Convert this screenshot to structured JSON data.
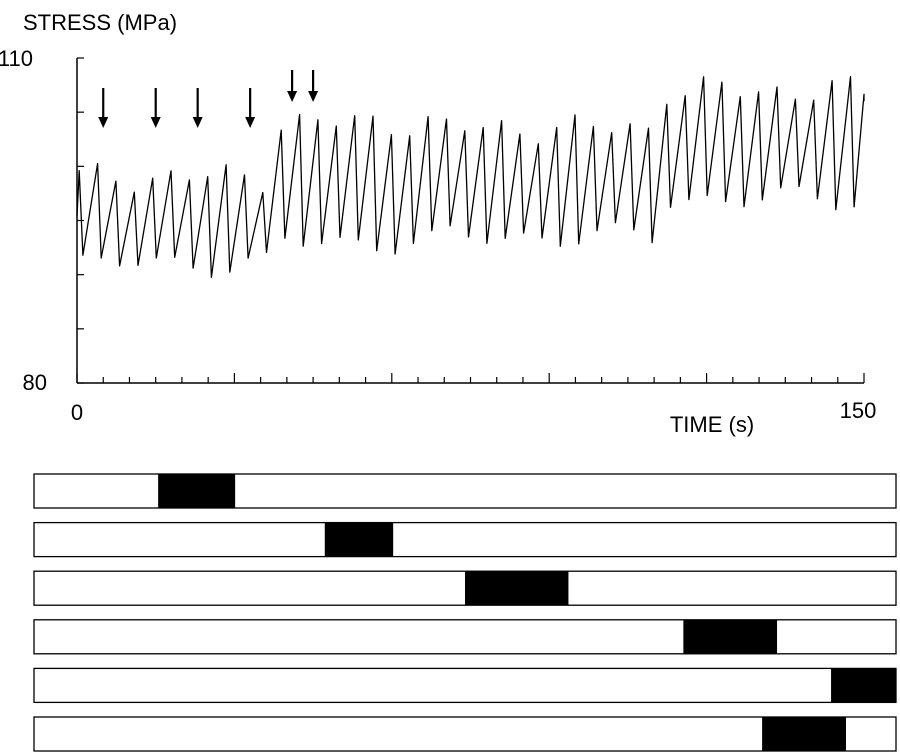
{
  "chart_data": [
    {
      "type": "line",
      "title": "",
      "ylabel": "STRESS (MPa)",
      "xlabel": "TIME (s)",
      "xlim": [
        0,
        150
      ],
      "ylim": [
        80,
        110
      ],
      "x_tick_labels": [
        "0",
        "150"
      ],
      "y_tick_labels": [
        "80",
        "110"
      ],
      "grid": false,
      "series": [
        {
          "style": "sawtooth",
          "period_s": 3.5,
          "segments": [
            {
              "x_start": 0,
              "x_end": 37,
              "peak": 99,
              "trough": 91
            },
            {
              "x_start": 37,
              "x_end": 70,
              "peak": 104,
              "trough": 93
            },
            {
              "x_start": 70,
              "x_end": 112,
              "peak": 103.5,
              "trough": 93.5
            },
            {
              "x_start": 112,
              "x_end": 150,
              "peak": 107,
              "trough": 97
            }
          ]
        }
      ],
      "annotations": {
        "arrows_x": [
          5,
          15,
          23,
          33,
          41,
          45
        ],
        "arrow_symbol": "down-arrow"
      }
    },
    {
      "type": "bar",
      "title": "",
      "orientation": "horizontal",
      "description_rows": 6,
      "xlim": [
        0,
        150
      ],
      "bars": [
        {
          "start": 21.6,
          "end": 35.0
        },
        {
          "start": 50.6,
          "end": 62.5
        },
        {
          "start": 75.0,
          "end": 93.0
        },
        {
          "start": 113.0,
          "end": 129.3
        },
        {
          "start": 138.7,
          "end": 150.0
        },
        {
          "start": 126.7,
          "end": 141.3
        }
      ]
    }
  ],
  "colors": {
    "ink": "#000000",
    "background": "#ffffff"
  }
}
